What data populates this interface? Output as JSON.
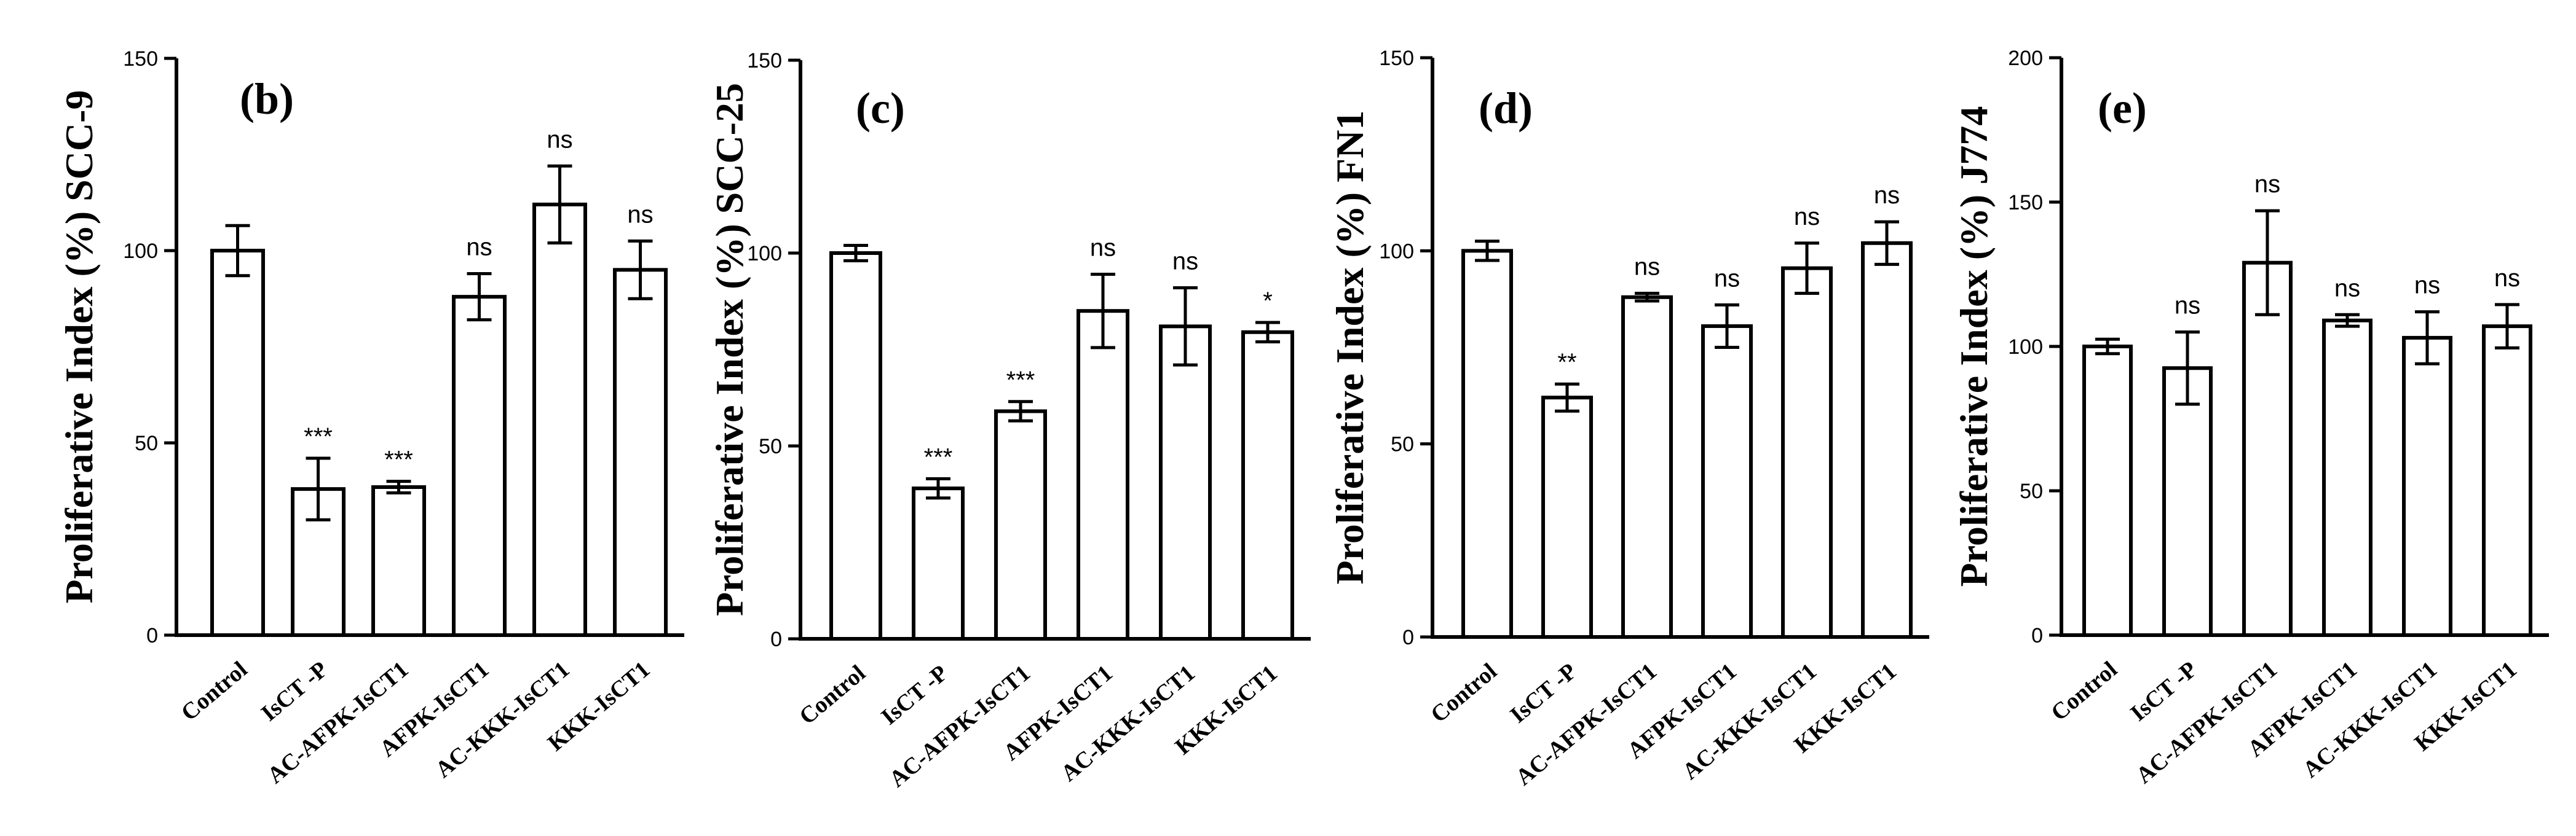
{
  "chart_data": [
    {
      "type": "bar",
      "panel_label": "(b)",
      "ylabel": "Proliferative Index (%) SCC-9",
      "xlabel": "",
      "ylim": [
        0,
        150
      ],
      "yticks": [
        0,
        50,
        100,
        150
      ],
      "categories": [
        "Control",
        "IsCT -P",
        "AC-AFPK-IsCT1",
        "AFPK-IsCT1",
        "AC-KKK-IsCT1",
        "KKK-IsCT1"
      ],
      "values": [
        100,
        38,
        38.5,
        88,
        112,
        95
      ],
      "errors": [
        6.5,
        8,
        1.5,
        6,
        10,
        7.5
      ],
      "significance": [
        "",
        "***",
        "***",
        "ns",
        "ns",
        "ns"
      ]
    },
    {
      "type": "bar",
      "panel_label": "(c)",
      "ylabel": "Proliferative Index (%) SCC-25",
      "xlabel": "",
      "ylim": [
        0,
        150
      ],
      "yticks": [
        0,
        50,
        100,
        150
      ],
      "categories": [
        "Control",
        "IsCT -P",
        "AC-AFPK-IsCT1",
        "AFPK-IsCT1",
        "AC-KKK-IsCT1",
        "KKK-IsCT1"
      ],
      "values": [
        100,
        39,
        59,
        85,
        81,
        79.5
      ],
      "errors": [
        2,
        2.5,
        2.5,
        9.5,
        10,
        2.5
      ],
      "significance": [
        "",
        "***",
        "***",
        "ns",
        "ns",
        "*"
      ]
    },
    {
      "type": "bar",
      "panel_label": "(d)",
      "ylabel": "Proliferative Index (%) FN1",
      "xlabel": "",
      "ylim": [
        0,
        150
      ],
      "yticks": [
        0,
        50,
        100,
        150
      ],
      "categories": [
        "Control",
        "IsCT -P",
        "AC-AFPK-IsCT1",
        "AFPK-IsCT1",
        "AC-KKK-IsCT1",
        "KKK-IsCT1"
      ],
      "values": [
        100,
        62,
        88,
        80.5,
        95.5,
        102
      ],
      "errors": [
        2.5,
        3.5,
        1,
        5.5,
        6.5,
        5.5
      ],
      "significance": [
        "",
        "**",
        "ns",
        "ns",
        "ns",
        "ns"
      ]
    },
    {
      "type": "bar",
      "panel_label": "(e)",
      "ylabel": "Proliferative Index (%) J774",
      "xlabel": "",
      "ylim": [
        0,
        200
      ],
      "yticks": [
        0,
        50,
        100,
        150,
        200
      ],
      "categories": [
        "Control",
        "IsCT -P",
        "AC-AFPK-IsCT1",
        "AFPK-IsCT1",
        "AC-KKK-IsCT1",
        "KKK-IsCT1"
      ],
      "values": [
        100,
        92.5,
        129,
        109,
        103,
        107
      ],
      "errors": [
        2.5,
        12.5,
        18,
        2,
        9,
        7.5
      ],
      "significance": [
        "",
        "ns",
        "ns",
        "ns",
        "ns",
        "ns"
      ]
    }
  ]
}
